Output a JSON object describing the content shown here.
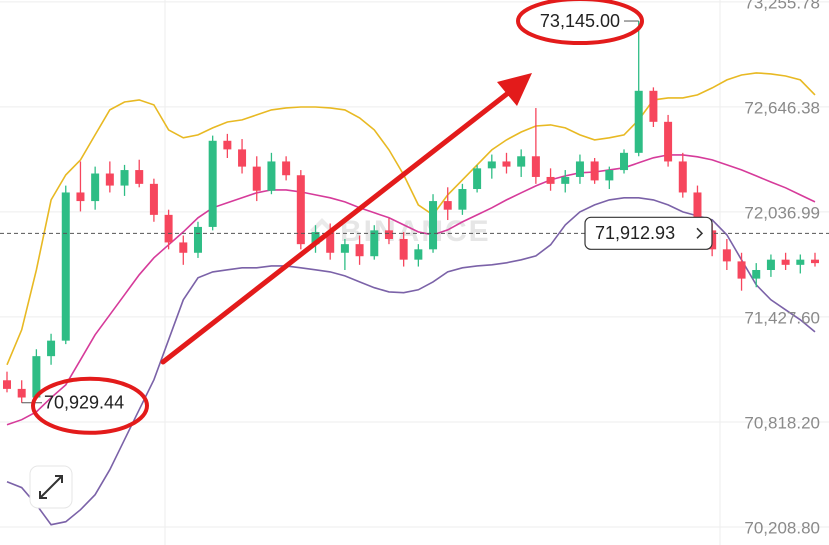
{
  "chart_data": {
    "type": "candlestick",
    "watermark": "BINANCE",
    "up_color": "#2ebd85",
    "down_color": "#f6465d",
    "ylim": [
      70104,
      73267
    ],
    "yticks": [
      {
        "value": 73255.78,
        "label": "73,255.78"
      },
      {
        "value": 72646.38,
        "label": "72,646.38"
      },
      {
        "value": 72036.99,
        "label": "72,036.99"
      },
      {
        "value": 71427.6,
        "label": "71,427.60"
      },
      {
        "value": 70818.2,
        "label": "70,818.20"
      },
      {
        "value": 70208.8,
        "label": "70,208.80"
      }
    ],
    "grid": true,
    "ohlc": [
      [
        71060,
        71110,
        70990,
        71010
      ],
      [
        71010,
        71060,
        70929.44,
        70960
      ],
      [
        70960,
        71240,
        70950,
        71200
      ],
      [
        71200,
        71330,
        71150,
        71290
      ],
      [
        71290,
        72190,
        71270,
        72150
      ],
      [
        72150,
        72330,
        72040,
        72100
      ],
      [
        72100,
        72300,
        72050,
        72260
      ],
      [
        72260,
        72330,
        72150,
        72190
      ],
      [
        72190,
        72310,
        72130,
        72280
      ],
      [
        72280,
        72340,
        72180,
        72200
      ],
      [
        72200,
        72230,
        71980,
        72020
      ],
      [
        72020,
        72050,
        71820,
        71860
      ],
      [
        71860,
        71900,
        71730,
        71800
      ],
      [
        71800,
        71980,
        71770,
        71950
      ],
      [
        71950,
        72480,
        71930,
        72450
      ],
      [
        72450,
        72490,
        72350,
        72400
      ],
      [
        72400,
        72460,
        72260,
        72300
      ],
      [
        72300,
        72360,
        72100,
        72160
      ],
      [
        72160,
        72380,
        72140,
        72330
      ],
      [
        72330,
        72360,
        72220,
        72250
      ],
      [
        72250,
        72280,
        71820,
        71850
      ],
      [
        71850,
        71960,
        71800,
        71920
      ],
      [
        71920,
        71970,
        71760,
        71800
      ],
      [
        71800,
        71880,
        71700,
        71850
      ],
      [
        71850,
        71900,
        71730,
        71780
      ],
      [
        71780,
        71960,
        71760,
        71930
      ],
      [
        71930,
        72000,
        71850,
        71880
      ],
      [
        71880,
        71920,
        71720,
        71760
      ],
      [
        71760,
        71850,
        71720,
        71820
      ],
      [
        71820,
        72140,
        71800,
        72100
      ],
      [
        72100,
        72180,
        71990,
        72050
      ],
      [
        72050,
        72200,
        72020,
        72170
      ],
      [
        72170,
        72310,
        72150,
        72290
      ],
      [
        72290,
        72370,
        72230,
        72330
      ],
      [
        72330,
        72380,
        72260,
        72300
      ],
      [
        72300,
        72400,
        72240,
        72360
      ],
      [
        72360,
        72640,
        72200,
        72240
      ],
      [
        72240,
        72290,
        72160,
        72200
      ],
      [
        72200,
        72280,
        72150,
        72240
      ],
      [
        72240,
        72370,
        72200,
        72330
      ],
      [
        72330,
        72350,
        72200,
        72220
      ],
      [
        72220,
        72300,
        72170,
        72280
      ],
      [
        72280,
        72400,
        72260,
        72380
      ],
      [
        72380,
        73145,
        72360,
        72740
      ],
      [
        72740,
        72760,
        72530,
        72560
      ],
      [
        72560,
        72600,
        72300,
        72330
      ],
      [
        72330,
        72380,
        72120,
        72150
      ],
      [
        72150,
        72190,
        71900,
        71930
      ],
      [
        71930,
        71970,
        71780,
        71820
      ],
      [
        71820,
        71880,
        71700,
        71750
      ],
      [
        71750,
        71800,
        71580,
        71650
      ],
      [
        71650,
        71740,
        71600,
        71700
      ],
      [
        71700,
        71790,
        71660,
        71760
      ],
      [
        71760,
        71800,
        71700,
        71730
      ],
      [
        71730,
        71790,
        71680,
        71760
      ],
      [
        71760,
        71800,
        71720,
        71740
      ]
    ],
    "series": [
      {
        "color": "#e8b923",
        "values": [
          71150,
          71353,
          71701,
          72107,
          72252,
          72339,
          72484,
          72629,
          72675,
          72687,
          72658,
          72513,
          72467,
          72484,
          72525,
          72559,
          72571,
          72600,
          72629,
          72641,
          72646,
          72646,
          72641,
          72629,
          72583,
          72513,
          72397,
          72252,
          72078,
          72020,
          72136,
          72223,
          72310,
          72397,
          72455,
          72501,
          72536,
          72542,
          72525,
          72484,
          72455,
          72467,
          72484,
          72571,
          72687,
          72699,
          72699,
          72716,
          72757,
          72803,
          72832,
          72844,
          72838,
          72826,
          72803,
          72716
        ]
      },
      {
        "color": "#d63b9a",
        "values": [
          70802,
          70831,
          70877,
          70959,
          71034,
          71179,
          71324,
          71440,
          71556,
          71672,
          71771,
          71846,
          71921,
          72003,
          72061,
          72090,
          72119,
          72148,
          72165,
          72165,
          72153,
          72136,
          72119,
          72095,
          72061,
          72032,
          72003,
          71962,
          71921,
          71904,
          71933,
          71979,
          72020,
          72061,
          72107,
          72148,
          72188,
          72223,
          72246,
          72264,
          72269,
          72281,
          72293,
          72322,
          72351,
          72368,
          72368,
          72357,
          72339,
          72310,
          72281,
          72246,
          72211,
          72177,
          72136,
          72095
        ]
      },
      {
        "color": "#7b62a8",
        "values": [
          70471,
          70437,
          70338,
          70222,
          70239,
          70309,
          70396,
          70541,
          70715,
          70889,
          71063,
          71295,
          71527,
          71655,
          71689,
          71701,
          71713,
          71713,
          71724,
          71724,
          71713,
          71701,
          71689,
          71666,
          71631,
          71597,
          71573,
          71568,
          71585,
          71631,
          71689,
          71713,
          71724,
          71730,
          71742,
          71759,
          71782,
          71846,
          71962,
          72037,
          72078,
          72107,
          72119,
          72119,
          72107,
          72078,
          72037,
          72014,
          71991,
          71904,
          71759,
          71614,
          71527,
          71469,
          71411,
          71341
        ]
      }
    ],
    "annotations": {
      "high": {
        "index": 43,
        "value": 73145.0,
        "label": "73,145.00"
      },
      "low": {
        "index": 1,
        "value": 70929.44,
        "label": "70,929.44"
      },
      "last_price": {
        "value": 71912.93,
        "label": "71,912.93"
      }
    }
  }
}
